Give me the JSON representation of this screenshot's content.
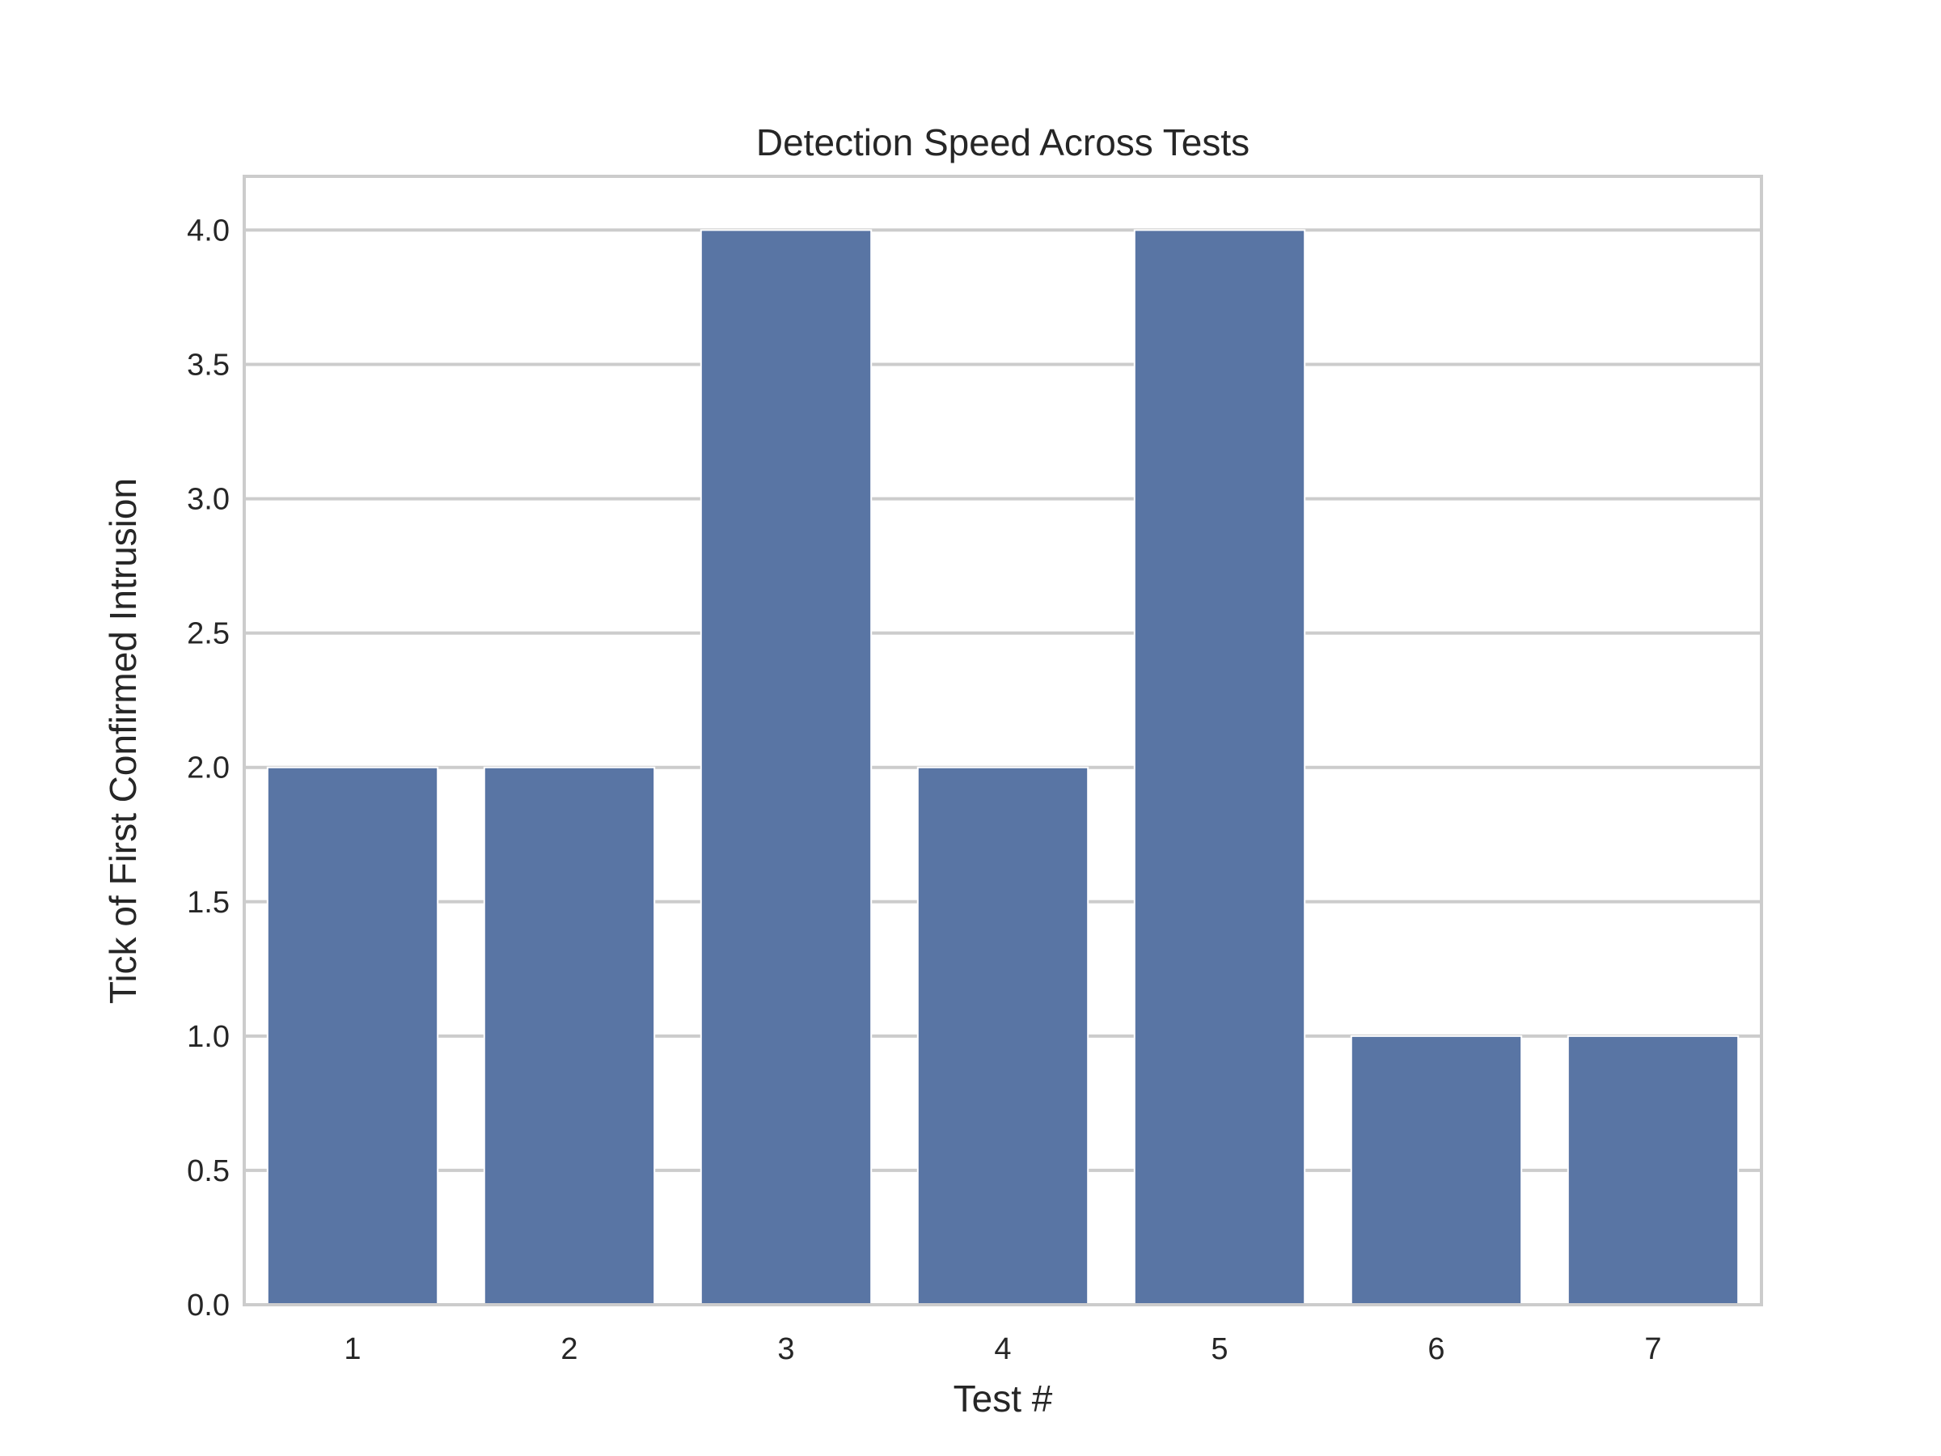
{
  "chart_data": {
    "type": "bar",
    "title": "Detection Speed Across Tests",
    "xlabel": "Test #",
    "ylabel": "Tick of First Confirmed Intrusion",
    "categories": [
      "1",
      "2",
      "3",
      "4",
      "5",
      "6",
      "7"
    ],
    "values": [
      2,
      2,
      4,
      2,
      4,
      1,
      1
    ],
    "ylim": [
      0,
      4.2
    ],
    "yticks": [
      "0.0",
      "0.5",
      "1.0",
      "1.5",
      "2.0",
      "2.5",
      "3.0",
      "3.5",
      "4.0"
    ],
    "grid": true,
    "bar_color": "#5975a4",
    "grid_color": "#cccccc",
    "legend": "none"
  }
}
